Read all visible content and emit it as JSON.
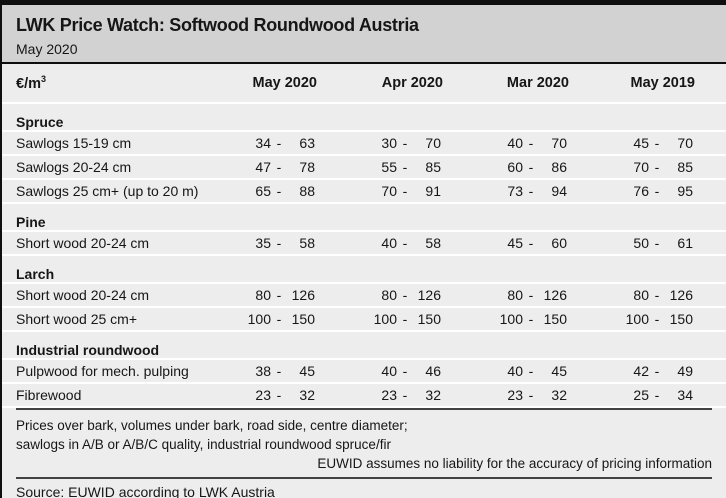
{
  "header": {
    "title": "LWK Price Watch: Softwood Roundwood Austria",
    "subtitle": "May 2020"
  },
  "table": {
    "unit_label": "€/m",
    "unit_sup": "3",
    "columns": [
      "May 2020",
      "Apr 2020",
      "Mar 2020",
      "May 2019"
    ],
    "dash": "-",
    "sections": [
      {
        "name": "Spruce",
        "rows": [
          {
            "label": "Sawlogs 15-19 cm",
            "prices": [
              [
                34,
                63
              ],
              [
                30,
                70
              ],
              [
                40,
                70
              ],
              [
                45,
                70
              ]
            ]
          },
          {
            "label": "Sawlogs 20-24 cm",
            "prices": [
              [
                47,
                78
              ],
              [
                55,
                85
              ],
              [
                60,
                86
              ],
              [
                70,
                85
              ]
            ]
          },
          {
            "label": "Sawlogs 25 cm+ (up to 20 m)",
            "prices": [
              [
                65,
                88
              ],
              [
                70,
                91
              ],
              [
                73,
                94
              ],
              [
                76,
                95
              ]
            ]
          }
        ]
      },
      {
        "name": "Pine",
        "rows": [
          {
            "label": "Short wood 20-24 cm",
            "prices": [
              [
                35,
                58
              ],
              [
                40,
                58
              ],
              [
                45,
                60
              ],
              [
                50,
                61
              ]
            ]
          }
        ]
      },
      {
        "name": "Larch",
        "rows": [
          {
            "label": "Short wood 20-24 cm",
            "prices": [
              [
                80,
                126
              ],
              [
                80,
                126
              ],
              [
                80,
                126
              ],
              [
                80,
                126
              ]
            ]
          },
          {
            "label": "Short wood 25 cm+",
            "prices": [
              [
                100,
                150
              ],
              [
                100,
                150
              ],
              [
                100,
                150
              ],
              [
                100,
                150
              ]
            ]
          }
        ]
      },
      {
        "name": "Industrial roundwood",
        "rows": [
          {
            "label": "Pulpwood for mech. pulping",
            "prices": [
              [
                38,
                45
              ],
              [
                40,
                46
              ],
              [
                40,
                45
              ],
              [
                42,
                49
              ]
            ]
          },
          {
            "label": "Fibrewood",
            "prices": [
              [
                23,
                32
              ],
              [
                23,
                32
              ],
              [
                23,
                32
              ],
              [
                25,
                34
              ]
            ]
          }
        ]
      }
    ]
  },
  "footer": {
    "note_line1": "Prices over bark, volumes under bark, road side, centre diameter;",
    "note_line2": "sawlogs in A/B or A/B/C quality, industrial roundwood spruce/fir",
    "disclaimer": "EUWID assumes no liability for the accuracy of pricing information",
    "source": "Source: EUWID according to LWK Austria"
  },
  "colors": {
    "titlebar_bg": "#d2d2d2",
    "body_bg": "#ededed",
    "frame_black": "#0f0f0f",
    "rule_dark": "#424242",
    "separator_white": "#ffffff",
    "text": "#161616"
  }
}
